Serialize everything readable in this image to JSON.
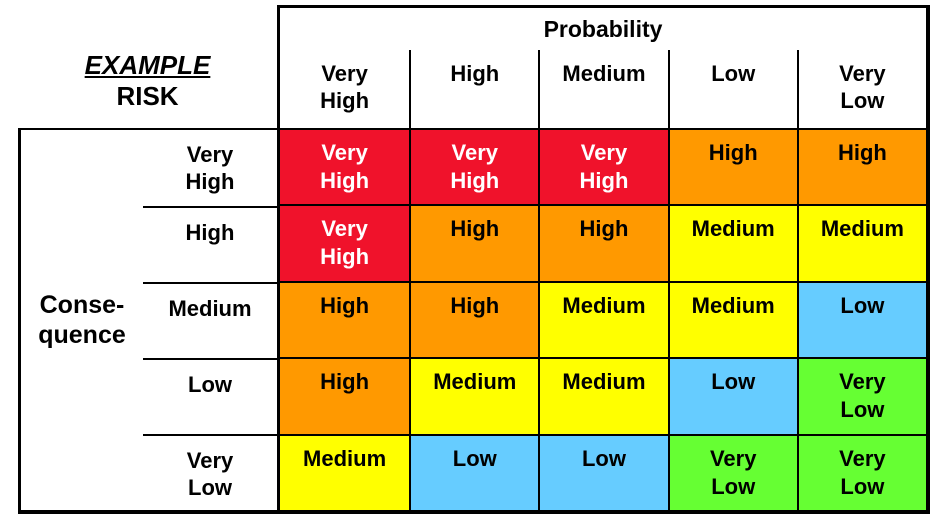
{
  "example_label": {
    "line1": "EXAMPLE",
    "line2": "RISK"
  },
  "probability": {
    "title": "Probability",
    "levels": [
      "Very\nHigh",
      "High",
      "Medium",
      "Low",
      "Very\nLow"
    ]
  },
  "consequence": {
    "title": "Conse-\nquence",
    "levels": [
      "Very\nHigh",
      "High",
      "Medium",
      "Low",
      "Very\nLow"
    ]
  },
  "colors": {
    "very-high": {
      "bg": "#F0122B",
      "text": "#FFFFFF"
    },
    "high": {
      "bg": "#FF9900",
      "text": "#000000"
    },
    "medium": {
      "bg": "#FFFF00",
      "text": "#000000"
    },
    "low": {
      "bg": "#66CCFF",
      "text": "#000000"
    },
    "very-low": {
      "bg": "#66FF33",
      "text": "#000000"
    }
  },
  "matrix": {
    "rows": [
      {
        "cells": [
          {
            "label": "Very\nHigh",
            "level": "very-high"
          },
          {
            "label": "Very\nHigh",
            "level": "very-high"
          },
          {
            "label": "Very\nHigh",
            "level": "very-high"
          },
          {
            "label": "High",
            "level": "high"
          },
          {
            "label": "High",
            "level": "high"
          }
        ]
      },
      {
        "cells": [
          {
            "label": "Very\nHigh",
            "level": "very-high"
          },
          {
            "label": "High",
            "level": "high"
          },
          {
            "label": "High",
            "level": "high"
          },
          {
            "label": "Medium",
            "level": "medium"
          },
          {
            "label": "Medium",
            "level": "medium"
          }
        ]
      },
      {
        "cells": [
          {
            "label": "High",
            "level": "high"
          },
          {
            "label": "High",
            "level": "high"
          },
          {
            "label": "Medium",
            "level": "medium"
          },
          {
            "label": "Medium",
            "level": "medium"
          },
          {
            "label": "Low",
            "level": "low"
          }
        ]
      },
      {
        "cells": [
          {
            "label": "High",
            "level": "high"
          },
          {
            "label": "Medium",
            "level": "medium"
          },
          {
            "label": "Medium",
            "level": "medium"
          },
          {
            "label": "Low",
            "level": "low"
          },
          {
            "label": "Very\nLow",
            "level": "very-low"
          }
        ]
      },
      {
        "cells": [
          {
            "label": "Medium",
            "level": "medium"
          },
          {
            "label": "Low",
            "level": "low"
          },
          {
            "label": "Low",
            "level": "low"
          },
          {
            "label": "Very\nLow",
            "level": "very-low"
          },
          {
            "label": "Very\nLow",
            "level": "very-low"
          }
        ]
      }
    ]
  }
}
